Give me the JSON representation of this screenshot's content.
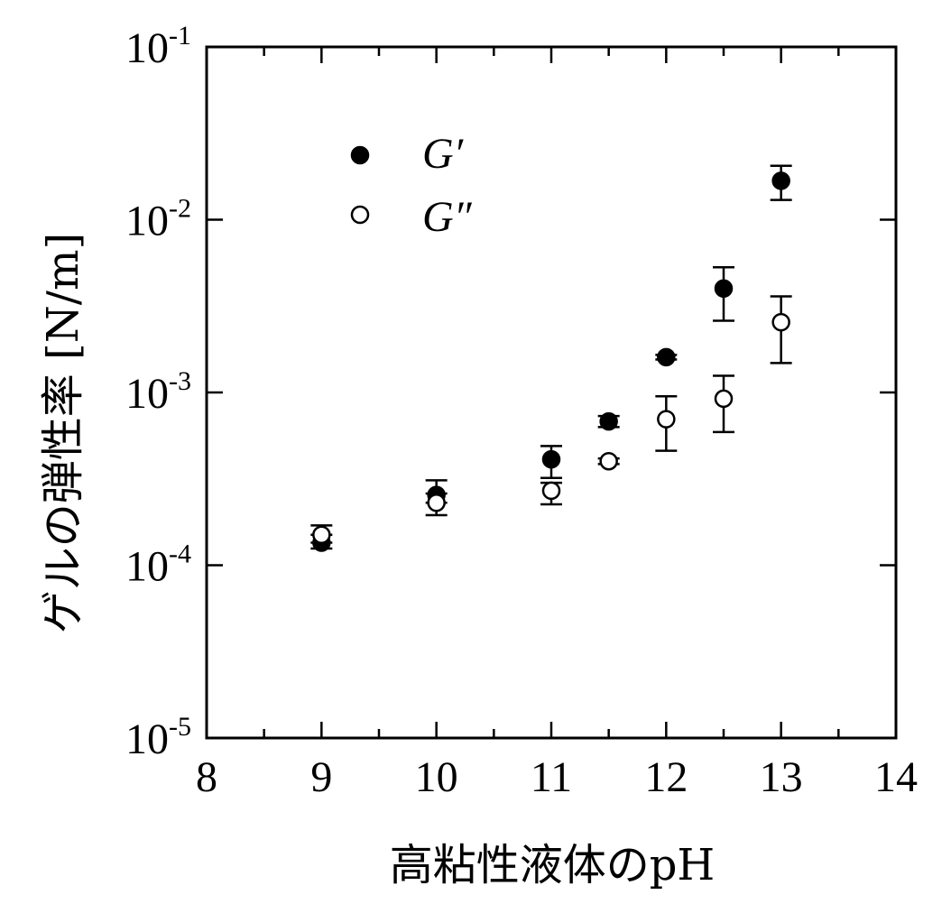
{
  "chart_data": {
    "type": "scatter",
    "title": "",
    "xlabel": "高粘性液体のpH",
    "ylabel": "ゲルの弾性率 [N/m]",
    "xlim": [
      8,
      14
    ],
    "ylim": [
      1e-05,
      0.1
    ],
    "yscale": "log",
    "x_ticks": [
      "8",
      "9",
      "10",
      "11",
      "12",
      "13",
      "14"
    ],
    "y_ticks": [
      {
        "value": 1e-05,
        "base": "10",
        "exp": "-5"
      },
      {
        "value": 0.0001,
        "base": "10",
        "exp": "-4"
      },
      {
        "value": 0.001,
        "base": "10",
        "exp": "-3"
      },
      {
        "value": 0.01,
        "base": "10",
        "exp": "-2"
      },
      {
        "value": 0.1,
        "base": "10",
        "exp": "-1"
      }
    ],
    "grid": false,
    "legend_position": "top-left",
    "series": [
      {
        "name": "G′",
        "marker": "filled-circle",
        "points": [
          {
            "x": 9,
            "y": 0.000135,
            "ylow": 0.000125,
            "yhigh": 0.00015
          },
          {
            "x": 10,
            "y": 0.000255,
            "ylow": 0.00023,
            "yhigh": 0.00031
          },
          {
            "x": 11,
            "y": 0.00041,
            "ylow": 0.00032,
            "yhigh": 0.00049
          },
          {
            "x": 11.5,
            "y": 0.00068,
            "ylow": 0.00063,
            "yhigh": 0.00073
          },
          {
            "x": 12,
            "y": 0.0016,
            "ylow": 0.00155,
            "yhigh": 0.00165
          },
          {
            "x": 12.5,
            "y": 0.004,
            "ylow": 0.0026,
            "yhigh": 0.0053
          },
          {
            "x": 13,
            "y": 0.0168,
            "ylow": 0.013,
            "yhigh": 0.0205
          }
        ]
      },
      {
        "name": "G″",
        "marker": "open-circle",
        "points": [
          {
            "x": 9,
            "y": 0.00015,
            "ylow": 0.000135,
            "yhigh": 0.00017
          },
          {
            "x": 10,
            "y": 0.00023,
            "ylow": 0.000195,
            "yhigh": 0.00026
          },
          {
            "x": 11,
            "y": 0.00027,
            "ylow": 0.000225,
            "yhigh": 0.0003
          },
          {
            "x": 11.5,
            "y": 0.0004,
            "ylow": 0.000385,
            "yhigh": 0.000415
          },
          {
            "x": 12,
            "y": 0.0007,
            "ylow": 0.00046,
            "yhigh": 0.00095
          },
          {
            "x": 12.5,
            "y": 0.00092,
            "ylow": 0.00059,
            "yhigh": 0.00125
          },
          {
            "x": 13,
            "y": 0.00255,
            "ylow": 0.00148,
            "yhigh": 0.0036
          }
        ]
      }
    ]
  }
}
